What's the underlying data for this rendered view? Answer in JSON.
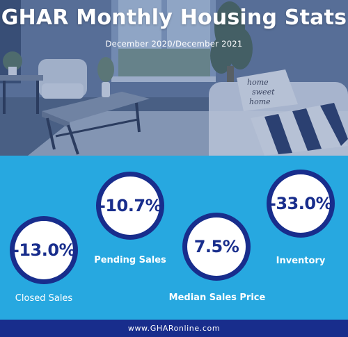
{
  "header": {
    "title": "GHAR Monthly Housing Stats",
    "subtitle": "December 2020/December 2021"
  },
  "stats": [
    {
      "label": "Closed Sales",
      "value": "-13.0%",
      "label_style": "light"
    },
    {
      "label": "Pending Sales",
      "value": "-10.7%",
      "label_style": "bold"
    },
    {
      "label": "Median Sales Price",
      "value": "7.5%",
      "label_style": "bold"
    },
    {
      "label": "Inventory",
      "value": "-33.0%",
      "label_style": "bold"
    }
  ],
  "pillow_text": [
    "home",
    "sweet",
    "home"
  ],
  "footer": {
    "url": "www.GHARonline.com"
  },
  "colors": {
    "background": "#27a8e0",
    "accent": "#182d8c",
    "circle_fill": "#ffffff",
    "text_light": "#ffffff"
  }
}
